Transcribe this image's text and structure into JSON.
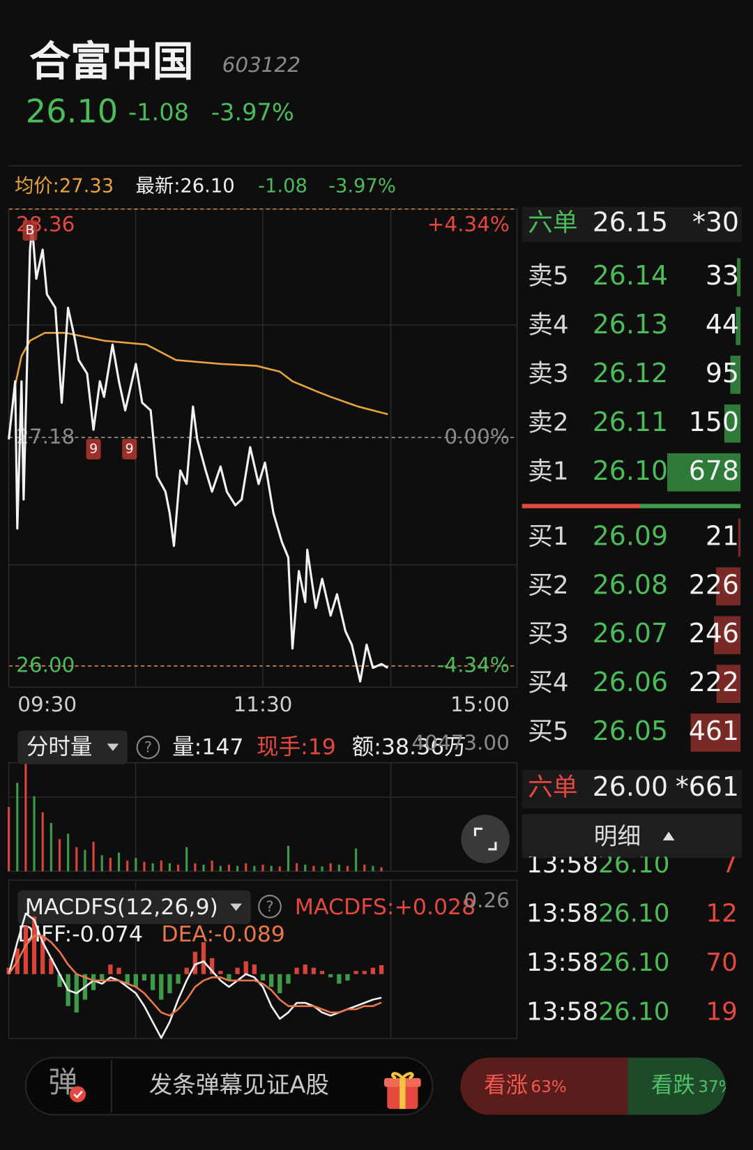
{
  "header": {
    "name": "合富中国",
    "code": "603122",
    "price": "26.10",
    "change": "-1.08",
    "change_pct": "-3.97%"
  },
  "info_bar": {
    "avg": "均价:27.33",
    "latest": "最新:26.10",
    "change": "-1.08",
    "change_pct": "-3.97%"
  },
  "chart_data": [
    {
      "type": "line",
      "xlim": [
        0,
        240
      ],
      "xticks": [
        {
          "value": 0,
          "label": "09:30"
        },
        {
          "value": 120,
          "label": "11:30"
        },
        {
          "value": 240,
          "label": "15:00"
        }
      ],
      "ylim": [
        26,
        28.36
      ],
      "yticks": [
        {
          "value": 28.36,
          "label": "28.36"
        },
        {
          "value": 27.18,
          "label": "27.18"
        },
        {
          "value": 26,
          "label": "26.00"
        }
      ],
      "y2lim": [
        -4.34,
        4.34
      ],
      "y2ticks": [
        {
          "value": 4.34,
          "label": "+4.34%"
        },
        {
          "value": 0,
          "label": "0.00%"
        },
        {
          "value": -4.34,
          "label": "-4.34%"
        }
      ],
      "series": [
        {
          "color": "#f2f2f2",
          "x": [
            0,
            3,
            4,
            6,
            7,
            10,
            11,
            13,
            16,
            18,
            22,
            25,
            28,
            31,
            33,
            37,
            40,
            43,
            45,
            49,
            52,
            55,
            60,
            63,
            67,
            70,
            74,
            76,
            78,
            81,
            84,
            87,
            89,
            93,
            96,
            100,
            103,
            107,
            110,
            114,
            118,
            121,
            125,
            129,
            132,
            134,
            137,
            140,
            141,
            145,
            148,
            152,
            155,
            159,
            162,
            166,
            169,
            172,
            176,
            179
          ],
          "values": [
            27.17,
            27.47,
            26.71,
            27.47,
            26.86,
            28.15,
            28.27,
            28.0,
            28.15,
            27.92,
            27.85,
            27.36,
            27.85,
            27.7,
            27.58,
            27.51,
            27.22,
            27.47,
            27.39,
            27.66,
            27.47,
            27.32,
            27.56,
            27.36,
            27.32,
            26.98,
            26.9,
            26.79,
            26.62,
            27.01,
            26.94,
            27.34,
            27.17,
            27.01,
            26.9,
            27.03,
            26.9,
            26.83,
            26.86,
            27.13,
            26.94,
            27.05,
            26.79,
            26.64,
            26.56,
            26.09,
            26.49,
            26.33,
            26.6,
            26.3,
            26.45,
            26.26,
            26.37,
            26.18,
            26.11,
            25.92,
            26.11,
            25.99,
            26.01,
            25.99
          ]
        },
        {
          "color": "#e8a33c",
          "x": [
            0,
            3,
            6,
            10,
            17,
            27,
            45,
            65,
            79,
            100,
            117,
            128,
            134,
            145,
            152,
            165,
            179
          ],
          "values": [
            27.18,
            27.45,
            27.6,
            27.68,
            27.72,
            27.72,
            27.68,
            27.66,
            27.58,
            27.56,
            27.55,
            27.52,
            27.47,
            27.42,
            27.39,
            27.34,
            27.3
          ]
        }
      ],
      "annotations": [
        {
          "text": "B",
          "x": 10,
          "y": 28.25
        },
        {
          "text": "9",
          "x": 40,
          "y": 27.12
        },
        {
          "text": "9",
          "x": 57,
          "y": 27.12
        }
      ]
    },
    {
      "type": "bar",
      "xlim": [
        0,
        240
      ],
      "ylim": [
        0,
        40473
      ],
      "yticks": [
        {
          "value": 40473,
          "label": "40473.00"
        }
      ],
      "colors": [
        "#d9443a",
        "#3c9a48"
      ],
      "x": [
        0,
        4,
        8,
        12,
        16,
        20,
        24,
        28,
        32,
        36,
        40,
        44,
        48,
        52,
        56,
        60,
        64,
        68,
        72,
        76,
        80,
        84,
        88,
        92,
        96,
        100,
        104,
        108,
        112,
        116,
        120,
        124,
        128,
        132,
        136,
        140,
        144,
        148,
        152,
        156,
        160,
        164,
        168,
        172,
        176
      ],
      "values": [
        24000,
        33000,
        40000,
        28000,
        22000,
        18000,
        12000,
        14000,
        9000,
        8000,
        11000,
        6000,
        5000,
        7000,
        4000,
        5000,
        3500,
        3000,
        4000,
        3000,
        2500,
        9000,
        3000,
        2500,
        4000,
        2000,
        2500,
        2000,
        3000,
        2000,
        2500,
        2000,
        1800,
        9500,
        3000,
        2500,
        2000,
        1800,
        3000,
        2500,
        2000,
        8500,
        2500,
        2000,
        1500
      ]
    },
    {
      "type": "macd",
      "xlim": [
        0,
        240
      ],
      "ylim": [
        -0.22,
        0.26
      ],
      "yticks": [
        0.26
      ],
      "x": [
        0,
        4,
        8,
        12,
        16,
        20,
        24,
        28,
        32,
        36,
        40,
        44,
        48,
        52,
        56,
        60,
        64,
        68,
        72,
        76,
        80,
        84,
        88,
        92,
        96,
        100,
        104,
        108,
        112,
        116,
        120,
        124,
        128,
        132,
        136,
        140,
        144,
        148,
        152,
        156,
        160,
        164,
        168,
        172,
        176
      ],
      "series": [
        {
          "style": "bar",
          "up_color": "#d9443a",
          "down_color": "#3c9a48",
          "values": [
            0.02,
            0.08,
            0.15,
            0.18,
            0.12,
            0.05,
            -0.04,
            -0.1,
            -0.12,
            -0.08,
            -0.05,
            -0.02,
            0.03,
            0.02,
            -0.03,
            -0.04,
            -0.02,
            -0.05,
            -0.08,
            -0.06,
            -0.03,
            0.02,
            0.07,
            0.1,
            0.05,
            0.01,
            -0.02,
            0.02,
            0.04,
            0.03,
            -0.02,
            -0.04,
            -0.06,
            -0.03,
            0.02,
            0.03,
            0.02,
            0.01,
            -0.01,
            -0.03,
            -0.02,
            0.01,
            0.01,
            0.02,
            0.028
          ]
        },
        {
          "style": "line",
          "color": "#f2f2f2",
          "values": [
            0,
            0.1,
            0.19,
            0.17,
            0.1,
            0.05,
            0,
            -0.05,
            -0.06,
            -0.04,
            -0.02,
            -0.03,
            -0.01,
            -0.02,
            -0.04,
            -0.06,
            -0.1,
            -0.15,
            -0.2,
            -0.15,
            -0.08,
            -0.02,
            0.03,
            0.04,
            0.01,
            -0.02,
            -0.04,
            -0.02,
            0,
            -0.01,
            -0.04,
            -0.1,
            -0.14,
            -0.12,
            -0.09,
            -0.09,
            -0.1,
            -0.12,
            -0.13,
            -0.12,
            -0.11,
            -0.1,
            -0.09,
            -0.08,
            -0.074
          ]
        },
        {
          "style": "line",
          "color": "#e8764a",
          "values": [
            0,
            0.04,
            0.09,
            0.12,
            0.12,
            0.1,
            0.07,
            0.03,
            0,
            -0.01,
            -0.02,
            -0.02,
            -0.02,
            -0.02,
            -0.03,
            -0.04,
            -0.06,
            -0.09,
            -0.12,
            -0.13,
            -0.11,
            -0.08,
            -0.04,
            -0.02,
            -0.01,
            -0.01,
            -0.02,
            -0.02,
            -0.02,
            -0.02,
            -0.03,
            -0.05,
            -0.08,
            -0.1,
            -0.1,
            -0.1,
            -0.1,
            -0.11,
            -0.12,
            -0.12,
            -0.11,
            -0.11,
            -0.1,
            -0.1,
            -0.089
          ]
        }
      ]
    }
  ],
  "volume_panel": {
    "selector": "分时量",
    "help": "?",
    "volume": "量:147",
    "hand": "现手:19",
    "amount": "额:38.36万"
  },
  "macd_panel": {
    "selector": "MACDFS(12,26,9)",
    "help": "?",
    "macdfs": "MACDFS:+0.028",
    "diff": "DIFF:-0.074",
    "dea": "DEA:-0.089"
  },
  "order_book": {
    "top": {
      "label": "六单",
      "price": "26.15",
      "volume": "*30"
    },
    "asks": [
      {
        "label": "卖5",
        "price": "26.14",
        "volume": 33
      },
      {
        "label": "卖4",
        "price": "26.13",
        "volume": 44
      },
      {
        "label": "卖3",
        "price": "26.12",
        "volume": 95
      },
      {
        "label": "卖2",
        "price": "26.11",
        "volume": 150
      },
      {
        "label": "卖1",
        "price": "26.10",
        "volume": 678
      }
    ],
    "bids": [
      {
        "label": "买1",
        "price": "26.09",
        "volume": 21
      },
      {
        "label": "买2",
        "price": "26.08",
        "volume": 226
      },
      {
        "label": "买3",
        "price": "26.07",
        "volume": 246
      },
      {
        "label": "买4",
        "price": "26.06",
        "volume": 222
      },
      {
        "label": "买5",
        "price": "26.05",
        "volume": 461
      }
    ],
    "bottom": {
      "label": "六单",
      "price": "26.00",
      "volume": "*661"
    }
  },
  "trades": {
    "title": "明细",
    "rows": [
      {
        "time": "13:58",
        "price": "26.10",
        "volume": "7"
      },
      {
        "time": "13:58",
        "price": "26.10",
        "volume": "12"
      },
      {
        "time": "13:58",
        "price": "26.10",
        "volume": "70"
      },
      {
        "time": "13:58",
        "price": "26.10",
        "volume": "19"
      }
    ]
  },
  "footer": {
    "danmaku_icon": "弹",
    "placeholder": "发条弹幕见证A股",
    "votes": [
      {
        "label": "看涨",
        "value": 63,
        "value_label": "63%"
      },
      {
        "label": "看跌",
        "value": 37,
        "value_label": "37%"
      }
    ]
  }
}
